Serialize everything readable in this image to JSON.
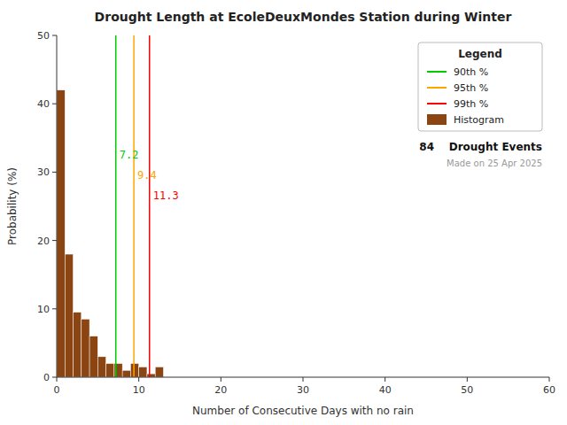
{
  "chart_data": {
    "type": "histogram",
    "title": "Drought Length at EcoleDeuxMondes Station during Winter",
    "x_label": "Number of Consecutive Days with no rain",
    "y_label": "Probability (%)",
    "xlim": [
      0,
      60
    ],
    "ylim": [
      0,
      50
    ],
    "xticks": [
      0,
      10,
      20,
      30,
      40,
      50,
      60
    ],
    "yticks": [
      0,
      10,
      20,
      30,
      40,
      50
    ],
    "grid": false,
    "legend": "upper right",
    "legend_title": "Legend",
    "bins": [
      0,
      1,
      2,
      3,
      4,
      5,
      6,
      7,
      8,
      9,
      10,
      11,
      12,
      13,
      14,
      15,
      16,
      17,
      18,
      19,
      20,
      21,
      22,
      23,
      24,
      25,
      26,
      27,
      28,
      29,
      30,
      31,
      32,
      33,
      34,
      35,
      36,
      37,
      38,
      39,
      40,
      41,
      42,
      43,
      44,
      45,
      46,
      47,
      48,
      49,
      50,
      51,
      52,
      53,
      54,
      55,
      56,
      57,
      58,
      59,
      60
    ],
    "series": [
      {
        "name": "90th %",
        "type": "vline",
        "color": "#00CC00",
        "x": 7.2,
        "data_labels": true
      },
      {
        "name": "95th %",
        "type": "vline",
        "color": "#FFA500",
        "x": 9.4,
        "data_labels": true
      },
      {
        "name": "99th %",
        "type": "vline",
        "color": "#FF0000",
        "x": 11.3,
        "data_labels": true
      },
      {
        "name": "Histogram",
        "type": "bar",
        "color": "#8B4513",
        "values": [
          42.0,
          18.0,
          9.5,
          8.5,
          6.0,
          3.0,
          2.0,
          2.0,
          1.0,
          2.0,
          1.5,
          0.5,
          1.5,
          0.0,
          0.0,
          0.0,
          0.0,
          0.0,
          0.0,
          0.0,
          0.0,
          0.0,
          0.0,
          0.0,
          0.0,
          0.0,
          0.0,
          0.0,
          0.0,
          0.0,
          0.0,
          0.0,
          0.0,
          0.0,
          0.0,
          0.0,
          0.0,
          0.0,
          0.0,
          0.0,
          0.0,
          0.0,
          0.0,
          0.0,
          0.0,
          0.0,
          0.0,
          0.0,
          0.0,
          0.0,
          0.0,
          0.0,
          0.0,
          0.0,
          0.0,
          0.0,
          0.0,
          0.0,
          0.0,
          0.0
        ]
      }
    ],
    "annotations": [
      "84    Drought Events",
      "Made on 25 Apr 2025"
    ]
  }
}
